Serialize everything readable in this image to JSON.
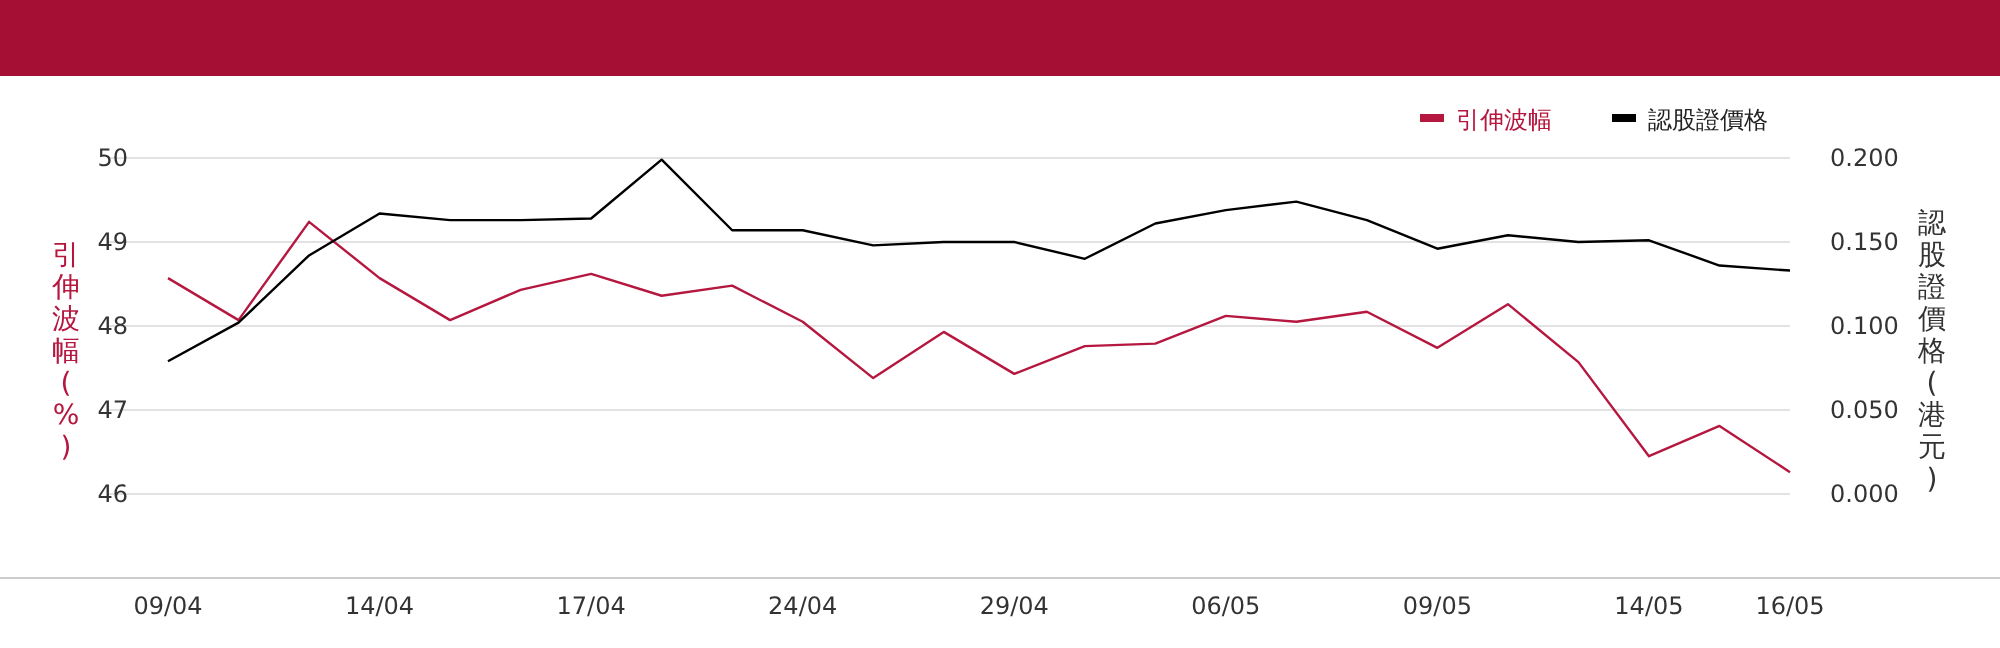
{
  "chart_data": {
    "type": "line",
    "categories": [
      "09/04",
      null,
      null,
      "14/04",
      null,
      null,
      "17/04",
      null,
      null,
      "24/04",
      null,
      null,
      "29/04",
      null,
      null,
      "06/05",
      null,
      null,
      "09/05",
      null,
      null,
      "14/05",
      null,
      "16/05"
    ],
    "ylabel": "引伸波幅(%)",
    "y2label": "認股證價格(港元)",
    "ylim": [
      45,
      50
    ],
    "yticks": [
      46,
      47,
      48,
      49,
      50
    ],
    "y2lim": [
      -0.05,
      0.2
    ],
    "y2ticks": [
      {
        "value": 0,
        "label": "0.000"
      },
      {
        "value": 0.05,
        "label": "0.050"
      },
      {
        "value": 0.1,
        "label": "0.100"
      },
      {
        "value": 0.15,
        "label": "0.150"
      },
      {
        "value": 0.2,
        "label": "0.200"
      }
    ],
    "grid": "y",
    "legend": "top right",
    "marker": "none",
    "line_style": "solid",
    "series": [
      {
        "name": "引伸波幅",
        "color": "#b5173f",
        "values": [
          48.57,
          48.07,
          49.24,
          48.57,
          48.07,
          48.43,
          48.62,
          48.36,
          48.48,
          48.05,
          47.38,
          47.93,
          47.43,
          47.76,
          47.79,
          48.12,
          48.05,
          48.17,
          47.74,
          48.26,
          47.57,
          46.45,
          46.81,
          46.26
        ]
      },
      {
        "name": "認股證價格",
        "color": "#000000",
        "axis": "y2",
        "values": [
          0.079,
          0.102,
          0.142,
          0.167,
          0.163,
          0.163,
          0.164,
          0.199,
          0.157,
          0.157,
          0.148,
          0.15,
          0.15,
          0.14,
          0.161,
          0.169,
          0.174,
          0.163,
          0.146,
          0.154,
          0.15,
          0.151,
          0.136,
          0.133
        ]
      }
    ]
  }
}
